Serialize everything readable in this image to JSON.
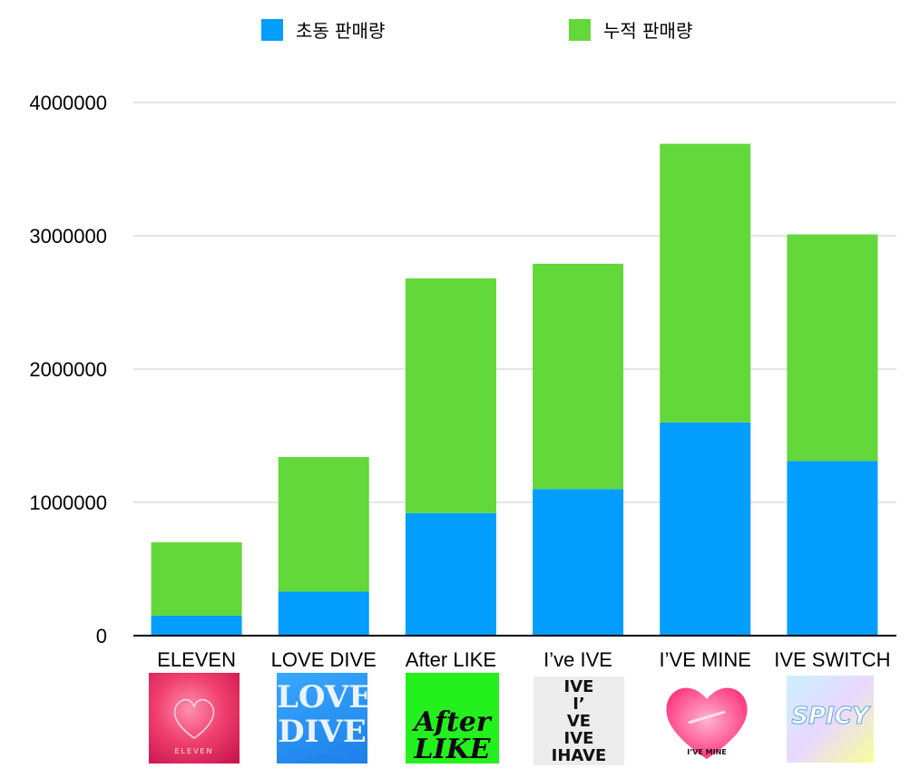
{
  "legend": {
    "initial_label": "초동 판매량",
    "cumulative_label": "누적 판매량"
  },
  "colors": {
    "initial": "#039EFF",
    "cumulative": "#62D83A",
    "grid": "#C8C8C8",
    "axis": "#000000"
  },
  "chart_data": {
    "type": "bar",
    "stacked": true,
    "categories": [
      "ELEVEN",
      "LOVE DIVE",
      "After LIKE",
      "I’ve IVE",
      "I’VE MINE",
      "IVE SWITCH"
    ],
    "series": [
      {
        "name": "초동 판매량",
        "values": [
          150000,
          330000,
          920000,
          1100000,
          1600000,
          1310000
        ]
      },
      {
        "name": "누적 판매량",
        "values": [
          550000,
          1010000,
          1760000,
          1690000,
          2090000,
          1700000
        ]
      }
    ],
    "ylim": [
      0,
      4000000
    ],
    "yticks": [
      0,
      1000000,
      2000000,
      3000000,
      4000000
    ],
    "grid": true,
    "legend_position": "top",
    "title": "",
    "xlabel": "",
    "ylabel": ""
  },
  "album_covers": [
    {
      "icon": "eleven-album-cover",
      "text": "ELEVEN"
    },
    {
      "icon": "love-dive-album-cover",
      "text": "LOVE DIVE"
    },
    {
      "icon": "after-like-album-cover",
      "text": "After LIKE"
    },
    {
      "icon": "ive-ive-album-cover",
      "text": "IVE I’ VE IVE IHAVE IVE"
    },
    {
      "icon": "ive-mine-album-cover",
      "text": "I’VE MINE"
    },
    {
      "icon": "ive-switch-album-cover",
      "text": "SPICY"
    }
  ]
}
